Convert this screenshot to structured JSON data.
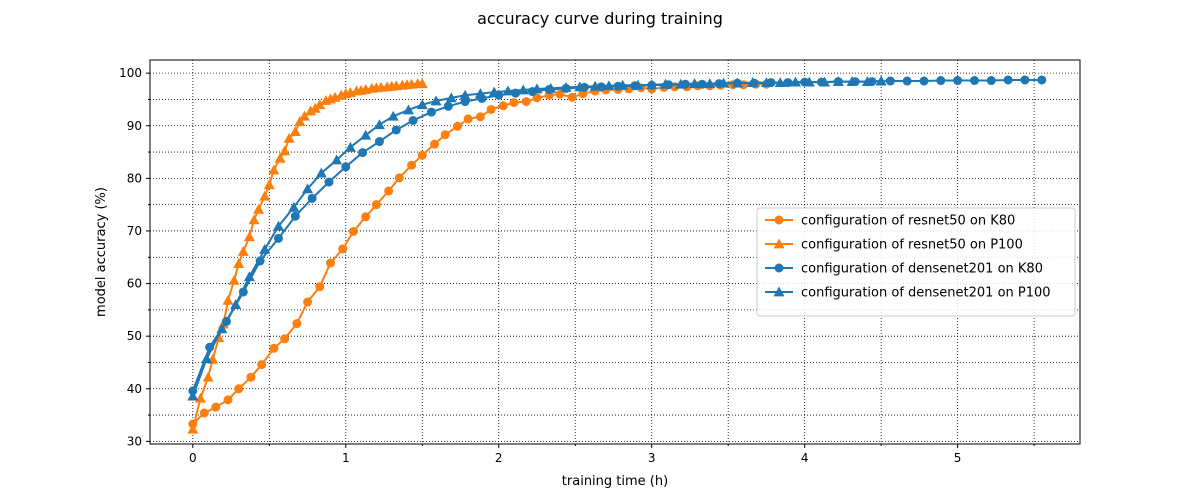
{
  "chart_data": {
    "type": "line",
    "title": "accuracy curve during training",
    "xlabel": "training time (h)",
    "ylabel": "model accuracy (%)",
    "xlim": [
      -0.28,
      5.8
    ],
    "ylim": [
      29.5,
      102.5
    ],
    "xticks": [
      0,
      1,
      2,
      3,
      4,
      5
    ],
    "yticks": [
      30,
      40,
      50,
      60,
      70,
      80,
      90,
      100
    ],
    "grid": true,
    "legend_position": "center-right",
    "series": [
      {
        "name": "configuration of resnet50 on K80",
        "color": "#ff7f0e",
        "marker": "circle",
        "x": [
          0,
          0.075,
          0.15,
          0.23,
          0.3,
          0.38,
          0.45,
          0.53,
          0.6,
          0.68,
          0.75,
          0.83,
          0.9,
          0.98,
          1.05,
          1.13,
          1.2,
          1.28,
          1.35,
          1.43,
          1.5,
          1.58,
          1.65,
          1.73,
          1.8,
          1.88,
          1.95,
          2.03,
          2.1,
          2.18,
          2.25,
          2.33,
          2.4,
          2.48,
          2.55,
          2.63,
          2.7,
          2.78,
          2.85,
          2.93,
          3.0,
          3.08,
          3.15,
          3.23,
          3.3,
          3.38,
          3.45,
          3.53,
          3.6,
          3.68,
          3.75
        ],
        "y": [
          33.3,
          35.4,
          36.5,
          37.9,
          40.0,
          42.2,
          44.6,
          47.7,
          49.5,
          52.4,
          56.5,
          59.4,
          63.9,
          66.6,
          69.9,
          72.7,
          75.0,
          77.6,
          80.1,
          82.5,
          84.4,
          86.5,
          88.3,
          89.9,
          91.3,
          91.7,
          93.1,
          93.8,
          94.4,
          94.6,
          95.3,
          95.8,
          96.0,
          95.4,
          96.1,
          96.6,
          96.8,
          96.9,
          97.0,
          97.2,
          97.0,
          97.3,
          97.4,
          97.4,
          97.6,
          97.6,
          97.7,
          97.8,
          97.8,
          97.9,
          97.9
        ]
      },
      {
        "name": "configuration of resnet50 on P100",
        "color": "#ff7f0e",
        "marker": "triangle",
        "x": [
          0,
          0.05,
          0.1,
          0.13,
          0.17,
          0.2,
          0.23,
          0.27,
          0.3,
          0.33,
          0.37,
          0.4,
          0.43,
          0.47,
          0.5,
          0.53,
          0.57,
          0.6,
          0.63,
          0.67,
          0.7,
          0.73,
          0.77,
          0.8,
          0.83,
          0.87,
          0.9,
          0.93,
          0.97,
          1.0,
          1.03,
          1.07,
          1.1,
          1.13,
          1.17,
          1.2,
          1.23,
          1.27,
          1.3,
          1.33,
          1.37,
          1.4,
          1.43,
          1.47,
          1.5
        ],
        "y": [
          32.3,
          38.2,
          42.2,
          45.6,
          49.7,
          52.3,
          56.8,
          60.6,
          63.8,
          66.1,
          68.9,
          72.1,
          74.1,
          76.6,
          78.8,
          81.6,
          83.8,
          85.2,
          87.6,
          88.9,
          90.8,
          91.8,
          92.8,
          93.3,
          94.0,
          94.8,
          95.1,
          95.4,
          95.8,
          96.1,
          96.3,
          96.6,
          96.7,
          96.9,
          97.1,
          97.2,
          97.3,
          97.4,
          97.5,
          97.6,
          97.7,
          97.8,
          97.9,
          98.0,
          98.0
        ]
      },
      {
        "name": "configuration of densenet201 on K80",
        "color": "#1f77b4",
        "marker": "circle",
        "x": [
          0,
          0.11,
          0.22,
          0.33,
          0.44,
          0.56,
          0.67,
          0.78,
          0.89,
          1.0,
          1.11,
          1.22,
          1.33,
          1.44,
          1.56,
          1.67,
          1.78,
          1.89,
          2.0,
          2.11,
          2.22,
          2.33,
          2.44,
          2.56,
          2.67,
          2.78,
          2.89,
          3.0,
          3.11,
          3.22,
          3.33,
          3.44,
          3.56,
          3.67,
          3.78,
          3.89,
          4.0,
          4.11,
          4.22,
          4.33,
          4.44,
          4.56,
          4.67,
          4.78,
          4.89,
          5.0,
          5.11,
          5.22,
          5.33,
          5.44,
          5.55
        ],
        "y": [
          39.6,
          47.9,
          52.8,
          58.4,
          64.3,
          68.6,
          72.8,
          76.2,
          79.3,
          82.2,
          84.9,
          87.0,
          89.2,
          91.0,
          92.6,
          93.7,
          94.6,
          95.2,
          95.8,
          96.2,
          96.5,
          96.9,
          97.1,
          97.3,
          97.4,
          97.5,
          97.6,
          97.7,
          97.8,
          97.9,
          97.9,
          98.0,
          98.1,
          98.1,
          98.2,
          98.2,
          98.3,
          98.3,
          98.4,
          98.4,
          98.4,
          98.5,
          98.5,
          98.5,
          98.6,
          98.6,
          98.6,
          98.6,
          98.7,
          98.7,
          98.7
        ]
      },
      {
        "name": "configuration of densenet201 on P100",
        "color": "#1f77b4",
        "marker": "triangle",
        "x": [
          0,
          0.09,
          0.19,
          0.28,
          0.37,
          0.47,
          0.56,
          0.66,
          0.75,
          0.84,
          0.94,
          1.03,
          1.13,
          1.22,
          1.31,
          1.41,
          1.5,
          1.59,
          1.69,
          1.78,
          1.88,
          1.97,
          2.06,
          2.16,
          2.25,
          2.34,
          2.44,
          2.53,
          2.63,
          2.72,
          2.81,
          2.91,
          3.0,
          3.09,
          3.19,
          3.28,
          3.38,
          3.47,
          3.56,
          3.66,
          3.75,
          3.84,
          3.94,
          4.03,
          4.13,
          4.22,
          4.31,
          4.41,
          4.5
        ],
        "y": [
          38.6,
          45.7,
          51.4,
          56.0,
          61.3,
          66.5,
          70.9,
          74.5,
          78.0,
          81.0,
          83.5,
          85.9,
          88.2,
          90.2,
          91.8,
          93.0,
          94.0,
          94.7,
          95.3,
          95.8,
          96.1,
          96.4,
          96.6,
          96.8,
          97.0,
          97.1,
          97.3,
          97.4,
          97.5,
          97.6,
          97.7,
          97.7,
          97.8,
          97.9,
          97.9,
          98.0,
          98.0,
          98.1,
          98.1,
          98.2,
          98.2,
          98.2,
          98.3,
          98.3,
          98.3,
          98.4,
          98.4,
          98.4,
          98.5
        ]
      }
    ]
  }
}
